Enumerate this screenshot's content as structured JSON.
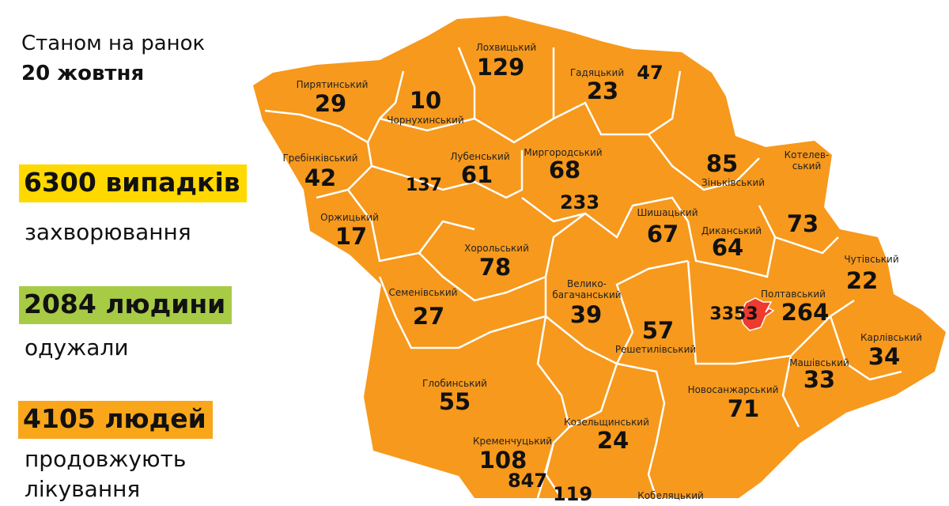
{
  "header": {
    "line1": "Станом на ранок",
    "line2": "20 жовтня"
  },
  "stats": [
    {
      "headline": "6300 випадків",
      "caption": "захворювання",
      "color": "#FFD800"
    },
    {
      "headline": "2084 людини",
      "caption": "одужали",
      "color": "#A8CB45"
    },
    {
      "headline": "4105 людей",
      "caption": "продовжують лікування",
      "color": "#F9A61A"
    }
  ],
  "map": {
    "fill_color": "#F7991C",
    "city_color": "#EE3A2F",
    "districts": [
      {
        "name": "Лохвицький",
        "value": "129"
      },
      {
        "name": "Гадяцький",
        "value": "23"
      },
      {
        "name": "",
        "value": "47"
      },
      {
        "name": "Пирятинський",
        "value": "29"
      },
      {
        "name": "Чорнухинський",
        "value": "10"
      },
      {
        "name": "Гребінківський",
        "value": "42"
      },
      {
        "name": "Лубенський",
        "value": "61"
      },
      {
        "name": "",
        "value": "137"
      },
      {
        "name": "Миргородський",
        "value": "68"
      },
      {
        "name": "",
        "value": "233"
      },
      {
        "name": "Зіньківський",
        "value": "85"
      },
      {
        "name": "Котелев-ський",
        "value": "73"
      },
      {
        "name": "Оржицький",
        "value": "17"
      },
      {
        "name": "Шишацький",
        "value": "67"
      },
      {
        "name": "Диканський",
        "value": "64"
      },
      {
        "name": "Хорольський",
        "value": "78"
      },
      {
        "name": "Чутівський",
        "value": "22"
      },
      {
        "name": "Семенівський",
        "value": "27"
      },
      {
        "name": "Велико-багачанський",
        "value": "39"
      },
      {
        "name": "Полтавський",
        "value": "264"
      },
      {
        "name": "",
        "value": "3353"
      },
      {
        "name": "Решетилівський",
        "value": "57"
      },
      {
        "name": "Карлівський",
        "value": "34"
      },
      {
        "name": "Машівський",
        "value": "33"
      },
      {
        "name": "Глобинський",
        "value": "55"
      },
      {
        "name": "Новосанжарський",
        "value": "71"
      },
      {
        "name": "Козельщинський",
        "value": "24"
      },
      {
        "name": "Кременчуцький",
        "value": "108"
      },
      {
        "name": "",
        "value": "847"
      },
      {
        "name": "",
        "value": "119"
      },
      {
        "name": "Кобеляцький",
        "value": ""
      }
    ]
  }
}
